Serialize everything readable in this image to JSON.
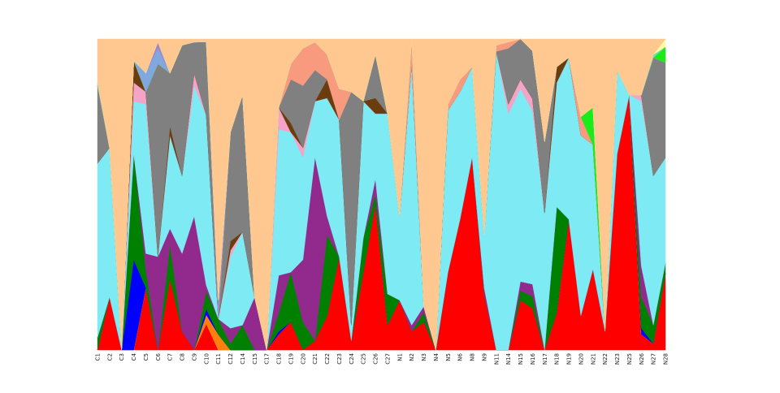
{
  "chart_data": {
    "type": "area",
    "stacked": "normalized",
    "ylim": [
      0,
      1
    ],
    "grid": false,
    "categories": [
      "C1",
      "C2",
      "C3",
      "C4",
      "C5",
      "C6",
      "C7",
      "C8",
      "C9",
      "C10",
      "C11",
      "C12",
      "C14",
      "C15",
      "C17",
      "C18",
      "C19",
      "C20",
      "C21",
      "C22",
      "C23",
      "C24",
      "C25",
      "C26",
      "C27",
      "N1",
      "N2",
      "N3",
      "N4",
      "N5",
      "N6",
      "N8",
      "N9",
      "N11",
      "N14",
      "N15",
      "N16",
      "N17",
      "N18",
      "N19",
      "N20",
      "N21",
      "N22",
      "N23",
      "N25",
      "N26",
      "N27",
      "N28"
    ],
    "series": [
      {
        "color": "#ff0000",
        "values": [
          0.0,
          0.17,
          0.0,
          0.0,
          0.2,
          0.0,
          0.23,
          0.06,
          0.0,
          0.09,
          0.0,
          0.0,
          0.0,
          0.0,
          0.0,
          0.05,
          0.09,
          0.0,
          0.03,
          0.11,
          0.3,
          0.03,
          0.25,
          0.47,
          0.08,
          0.16,
          0.06,
          0.09,
          0.0,
          0.25,
          0.42,
          0.62,
          0.18,
          0.0,
          0.0,
          0.16,
          0.14,
          0.0,
          0.12,
          0.42,
          0.11,
          0.26,
          0.06,
          0.63,
          0.82,
          0.05,
          0.02,
          0.29
        ]
      },
      {
        "color": "#ffff00",
        "values": [
          0.0,
          0.0,
          0.0,
          0.0,
          0.0,
          0.0,
          0.0,
          0.0,
          0.0,
          0.0,
          0.0,
          0.0,
          0.0,
          0.0,
          0.0,
          0.0,
          0.0,
          0.0,
          0.0,
          0.0,
          0.0,
          0.0,
          0.0,
          0.0,
          0.0,
          0.0,
          0.0,
          0.0,
          0.0,
          0.0,
          0.0,
          0.0,
          0.0,
          0.0,
          0.0,
          0.0,
          0.0,
          0.0,
          0.0,
          0.0,
          0.0,
          0.0,
          0.0,
          0.0,
          0.0,
          0.0,
          0.0,
          0.0
        ]
      },
      {
        "color": "#ff7f0e",
        "values": [
          0.0,
          0.0,
          0.0,
          0.0,
          0.0,
          0.0,
          0.0,
          0.0,
          0.0,
          0.03,
          0.05,
          0.0,
          0.0,
          0.0,
          0.0,
          0.0,
          0.0,
          0.0,
          0.0,
          0.0,
          0.0,
          0.0,
          0.0,
          0.0,
          0.0,
          0.0,
          0.0,
          0.0,
          0.0,
          0.0,
          0.0,
          0.0,
          0.0,
          0.0,
          0.0,
          0.0,
          0.0,
          0.0,
          0.0,
          0.0,
          0.0,
          0.0,
          0.0,
          0.0,
          0.0,
          0.0,
          0.0,
          0.0
        ]
      },
      {
        "color": "#0000ff",
        "values": [
          0.0,
          0.0,
          0.0,
          0.29,
          0.0,
          0.0,
          0.0,
          0.0,
          0.0,
          0.02,
          0.0,
          0.0,
          0.0,
          0.0,
          0.0,
          0.01,
          0.0,
          0.0,
          0.0,
          0.0,
          0.0,
          0.0,
          0.0,
          0.0,
          0.0,
          0.0,
          0.0,
          0.0,
          0.0,
          0.0,
          0.0,
          0.0,
          0.0,
          0.0,
          0.0,
          0.0,
          0.0,
          0.0,
          0.0,
          0.0,
          0.0,
          0.0,
          0.0,
          0.0,
          0.0,
          0.02,
          0.0,
          0.0
        ]
      },
      {
        "color": "#008000",
        "values": [
          0.04,
          0.0,
          0.0,
          0.34,
          0.06,
          0.0,
          0.11,
          0.0,
          0.0,
          0.06,
          0.05,
          0.02,
          0.08,
          0.0,
          0.0,
          0.06,
          0.16,
          0.09,
          0.0,
          0.26,
          0.0,
          0.0,
          0.11,
          0.03,
          0.1,
          0.0,
          0.0,
          0.03,
          0.0,
          0.0,
          0.0,
          0.0,
          0.0,
          0.0,
          0.0,
          0.03,
          0.04,
          0.0,
          0.34,
          0.0,
          0.0,
          0.0,
          0.0,
          0.0,
          0.0,
          0.1,
          0.06,
          0.04
        ]
      },
      {
        "color": "#912a8c",
        "values": [
          0.0,
          0.0,
          0.0,
          0.0,
          0.05,
          0.3,
          0.05,
          0.25,
          0.43,
          0.02,
          0.0,
          0.05,
          0.0,
          0.17,
          0.0,
          0.12,
          0.0,
          0.2,
          0.59,
          0.06,
          0.0,
          0.0,
          0.0,
          0.05,
          0.0,
          0.0,
          0.02,
          0.02,
          0.0,
          0.0,
          0.0,
          0.0,
          0.02,
          0.0,
          0.0,
          0.03,
          0.04,
          0.0,
          0.0,
          0.0,
          0.0,
          0.0,
          0.0,
          0.0,
          0.0,
          0.1,
          0.0,
          0.0
        ]
      },
      {
        "color": "#7eeaf4",
        "values": [
          0.56,
          0.48,
          0.0,
          0.17,
          0.48,
          0.0,
          0.3,
          0.25,
          0.42,
          0.58,
          0.0,
          0.23,
          0.3,
          0.0,
          0.0,
          0.47,
          0.45,
          0.33,
          0.18,
          0.38,
          0.44,
          0.05,
          0.44,
          0.21,
          0.58,
          0.27,
          0.84,
          0.0,
          0.0,
          0.52,
          0.41,
          0.29,
          0.17,
          0.96,
          0.76,
          0.62,
          0.58,
          0.44,
          0.4,
          0.52,
          0.58,
          0.4,
          0.0,
          0.27,
          0.0,
          0.53,
          0.48,
          0.4
        ]
      },
      {
        "color": "#f5a3c7",
        "values": [
          0.0,
          0.0,
          0.0,
          0.06,
          0.04,
          0.0,
          0.0,
          0.0,
          0.04,
          0.0,
          0.0,
          0.02,
          0.0,
          0.0,
          0.0,
          0.07,
          0.0,
          0.03,
          0.0,
          0.0,
          0.0,
          0.0,
          0.0,
          0.0,
          0.0,
          0.0,
          0.0,
          0.0,
          0.0,
          0.0,
          0.0,
          0.0,
          0.0,
          0.0,
          0.03,
          0.03,
          0.04,
          0.0,
          0.0,
          0.0,
          0.0,
          0.0,
          0.0,
          0.0,
          0.0,
          0.02,
          0.0,
          0.0
        ]
      },
      {
        "color": "#6b3d0e",
        "values": [
          0.0,
          0.0,
          0.0,
          0.07,
          0.0,
          0.0,
          0.03,
          0.0,
          0.0,
          0.0,
          0.0,
          0.03,
          0.0,
          0.0,
          0.0,
          0.0,
          0.03,
          0.0,
          0.0,
          0.06,
          0.0,
          0.0,
          0.0,
          0.05,
          0.0,
          0.0,
          0.0,
          0.0,
          0.0,
          0.0,
          0.0,
          0.0,
          0.0,
          0.0,
          0.0,
          0.0,
          0.0,
          0.0,
          0.05,
          0.0,
          0.0,
          0.0,
          0.0,
          0.0,
          0.0,
          0.0,
          0.0,
          0.0
        ]
      },
      {
        "color": "#808080",
        "values": [
          0.25,
          0.0,
          0.0,
          0.0,
          0.0,
          0.62,
          0.17,
          0.42,
          0.1,
          0.25,
          0.0,
          0.35,
          0.44,
          0.0,
          0.0,
          0.0,
          0.14,
          0.2,
          0.1,
          0.0,
          0.0,
          0.75,
          0.0,
          0.14,
          0.0,
          0.0,
          0.0,
          0.0,
          0.0,
          0.0,
          0.0,
          0.0,
          0.0,
          0.0,
          0.18,
          0.13,
          0.16,
          0.23,
          0.0,
          0.0,
          0.0,
          0.0,
          0.0,
          0.0,
          0.0,
          0.0,
          0.38,
          0.36
        ]
      },
      {
        "color": "#f79a7d",
        "values": [
          0.0,
          0.0,
          0.0,
          0.0,
          0.0,
          0.0,
          0.0,
          0.0,
          0.0,
          0.0,
          0.0,
          0.0,
          0.0,
          0.0,
          0.0,
          0.0,
          0.05,
          0.12,
          0.09,
          0.08,
          0.1,
          0.0,
          0.0,
          0.0,
          0.0,
          0.0,
          0.08,
          0.0,
          0.0,
          0.02,
          0.04,
          0.0,
          0.0,
          0.02,
          0.02,
          0.0,
          0.0,
          0.0,
          0.0,
          0.0,
          0.06,
          0.0,
          0.0,
          0.0,
          0.0,
          0.0,
          0.0,
          0.0
        ]
      },
      {
        "color": "#19ec19",
        "values": [
          0.0,
          0.0,
          0.0,
          0.0,
          0.0,
          0.0,
          0.0,
          0.0,
          0.0,
          0.0,
          0.0,
          0.0,
          0.0,
          0.0,
          0.0,
          0.0,
          0.0,
          0.0,
          0.0,
          0.0,
          0.0,
          0.0,
          0.0,
          0.0,
          0.0,
          0.0,
          0.0,
          0.0,
          0.0,
          0.0,
          0.0,
          0.0,
          0.0,
          0.0,
          0.0,
          0.0,
          0.0,
          0.0,
          0.0,
          0.0,
          0.0,
          0.12,
          0.0,
          0.0,
          0.0,
          0.0,
          0.0,
          0.06
        ]
      },
      {
        "color": "#7fa9de",
        "values": [
          0.01,
          0.0,
          0.0,
          0.0,
          0.06,
          0.05,
          0.0,
          0.0,
          0.0,
          0.0,
          0.0,
          0.0,
          0.0,
          0.0,
          0.0,
          0.0,
          0.0,
          0.0,
          0.0,
          0.0,
          0.0,
          0.0,
          0.0,
          0.0,
          0.0,
          0.0,
          0.0,
          0.0,
          0.0,
          0.0,
          0.0,
          0.0,
          0.0,
          0.0,
          0.0,
          0.0,
          0.0,
          0.0,
          0.0,
          0.0,
          0.0,
          0.0,
          0.0,
          0.0,
          0.0,
          0.0,
          0.0,
          0.0
        ]
      },
      {
        "color": "#a585c8",
        "values": [
          0.0,
          0.0,
          0.0,
          0.0,
          0.0,
          0.02,
          0.0,
          0.0,
          0.0,
          0.0,
          0.06,
          0.0,
          0.0,
          0.0,
          0.0,
          0.0,
          0.0,
          0.0,
          0.0,
          0.0,
          0.0,
          0.0,
          0.0,
          0.0,
          0.0,
          0.0,
          0.0,
          0.0,
          0.0,
          0.0,
          0.0,
          0.0,
          0.0,
          0.0,
          0.0,
          0.0,
          0.0,
          0.0,
          0.0,
          0.0,
          0.0,
          0.0,
          0.0,
          0.0,
          0.0,
          0.0,
          0.0,
          0.0
        ]
      },
      {
        "color": "#6ddfa8",
        "values": [
          0.0,
          0.0,
          0.0,
          0.0,
          0.0,
          0.0,
          0.0,
          0.0,
          0.0,
          0.0,
          0.0,
          0.0,
          0.0,
          0.0,
          0.0,
          0.0,
          0.0,
          0.0,
          0.0,
          0.0,
          0.0,
          0.0,
          0.0,
          0.0,
          0.0,
          0.0,
          0.0,
          0.0,
          0.0,
          0.0,
          0.0,
          0.0,
          0.0,
          0.0,
          0.0,
          0.0,
          0.0,
          0.0,
          0.0,
          0.0,
          0.0,
          0.0,
          0.0,
          0.0,
          0.0,
          0.0,
          0.01,
          0.0
        ]
      },
      {
        "color": "#ffffa0",
        "values": [
          0.0,
          0.0,
          0.0,
          0.0,
          0.0,
          0.0,
          0.0,
          0.0,
          0.0,
          0.0,
          0.0,
          0.0,
          0.0,
          0.0,
          0.0,
          0.0,
          0.0,
          0.0,
          0.0,
          0.0,
          0.0,
          0.0,
          0.0,
          0.0,
          0.0,
          0.0,
          0.0,
          0.0,
          0.0,
          0.0,
          0.0,
          0.0,
          0.0,
          0.0,
          0.0,
          0.0,
          0.0,
          0.0,
          0.0,
          0.0,
          0.0,
          0.0,
          0.0,
          0.0,
          0.0,
          0.0,
          0.0,
          0.03
        ]
      },
      {
        "color": "#ffc891",
        "values": [
          0.14,
          0.35,
          1.0,
          0.07,
          0.11,
          0.01,
          0.11,
          0.02,
          0.01,
          0.01,
          0.84,
          0.3,
          0.18,
          0.83,
          1.0,
          0.22,
          0.08,
          0.03,
          0.01,
          0.05,
          0.16,
          0.17,
          0.2,
          0.05,
          0.24,
          0.57,
          0.0,
          0.86,
          1.0,
          0.21,
          0.13,
          0.09,
          0.63,
          0.02,
          0.01,
          0.0,
          0.04,
          0.33,
          0.09,
          0.06,
          0.25,
          0.22,
          0.94,
          0.1,
          0.18,
          0.18,
          0.05,
          0.0
        ]
      }
    ]
  }
}
